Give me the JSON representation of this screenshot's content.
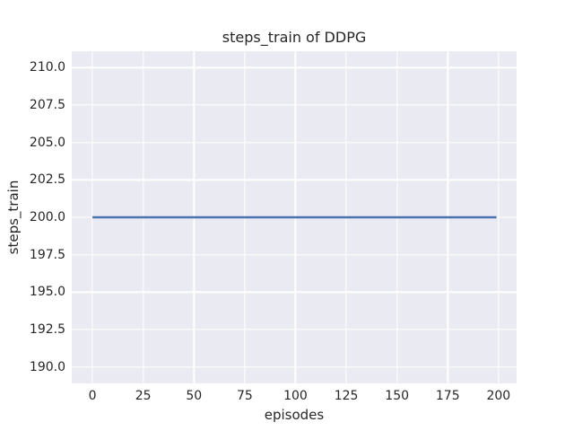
{
  "chart_data": {
    "type": "line",
    "title": "steps_train of DDPG",
    "xlabel": "episodes",
    "ylabel": "steps_train",
    "x_ticks": [
      0,
      25,
      50,
      75,
      100,
      125,
      150,
      175,
      200
    ],
    "y_tick_labels": [
      "190.0",
      "192.5",
      "195.0",
      "197.5",
      "200.0",
      "202.5",
      "205.0",
      "207.5",
      "210.0"
    ],
    "xlim": [
      -10.2,
      208.9
    ],
    "ylim": [
      188.9,
      211.1
    ],
    "grid": true,
    "legend_position": "none",
    "series": [
      {
        "name": "steps_train",
        "color": "#4c72b0",
        "x": [
          0,
          199
        ],
        "y": [
          200,
          200
        ],
        "note": "constant value 200 for every episode from 0 to 199"
      }
    ],
    "style": {
      "figure_background": "#ffffff",
      "plot_background": "#eaeaf2",
      "grid_color": "#ffffff",
      "text_color": "#262626"
    }
  }
}
